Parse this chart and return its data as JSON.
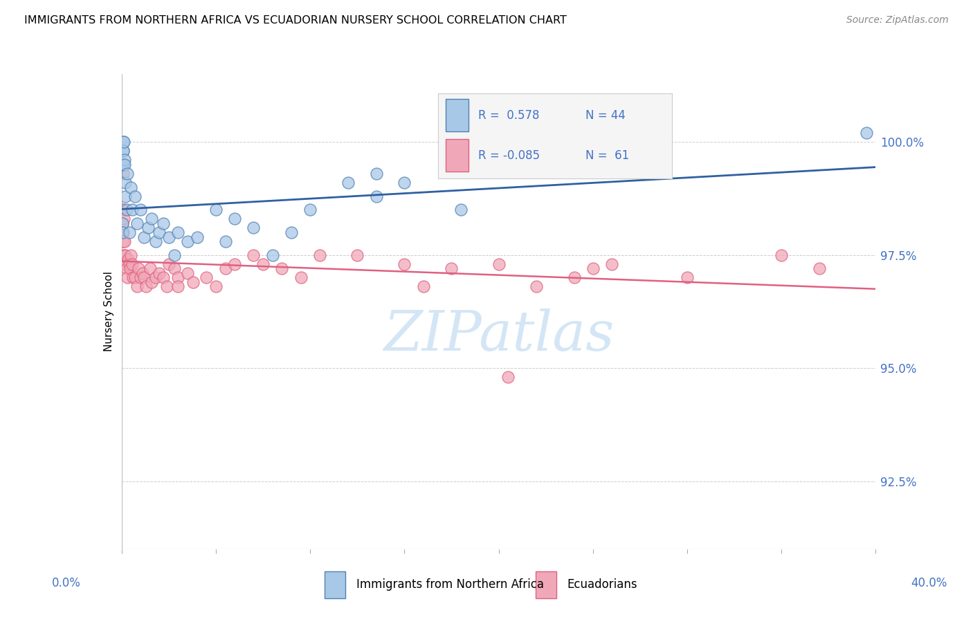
{
  "title": "IMMIGRANTS FROM NORTHERN AFRICA VS ECUADORIAN NURSERY SCHOOL CORRELATION CHART",
  "source": "Source: ZipAtlas.com",
  "ylabel": "Nursery School",
  "ytick_labels": [
    "92.5%",
    "95.0%",
    "97.5%",
    "100.0%"
  ],
  "ytick_values": [
    92.5,
    95.0,
    97.5,
    100.0
  ],
  "xlim": [
    0.0,
    40.0
  ],
  "ylim": [
    91.0,
    101.5
  ],
  "legend_r_blue": "0.578",
  "legend_n_blue": "44",
  "legend_r_pink": "-0.085",
  "legend_n_pink": "61",
  "blue_color": "#A8C8E8",
  "pink_color": "#F0A8B8",
  "blue_edge_color": "#5080B0",
  "pink_edge_color": "#E06080",
  "blue_line_color": "#3060A0",
  "pink_line_color": "#E06080",
  "watermark_color": "#D0E4F4",
  "blue_x": [
    0.05,
    0.05,
    0.08,
    0.08,
    0.1,
    0.1,
    0.12,
    0.15,
    0.15,
    0.18,
    0.2,
    0.25,
    0.3,
    0.4,
    0.5,
    0.55,
    0.7,
    0.8,
    1.0,
    1.2,
    1.4,
    1.6,
    1.8,
    2.0,
    2.2,
    2.5,
    2.8,
    3.0,
    3.5,
    4.0,
    5.0,
    5.5,
    6.0,
    7.0,
    8.0,
    9.0,
    10.0,
    12.0,
    13.5,
    13.5,
    15.0,
    18.0,
    25.0,
    39.5
  ],
  "blue_y": [
    98.2,
    98.0,
    100.0,
    99.8,
    99.8,
    99.5,
    100.0,
    99.6,
    99.5,
    99.1,
    98.8,
    98.5,
    99.3,
    98.0,
    99.0,
    98.5,
    98.8,
    98.2,
    98.5,
    97.9,
    98.1,
    98.3,
    97.8,
    98.0,
    98.2,
    97.9,
    97.5,
    98.0,
    97.8,
    97.9,
    98.5,
    97.8,
    98.3,
    98.1,
    97.5,
    98.0,
    98.5,
    99.1,
    98.8,
    99.3,
    99.1,
    98.5,
    99.5,
    100.2
  ],
  "pink_x": [
    0.05,
    0.05,
    0.08,
    0.08,
    0.1,
    0.1,
    0.1,
    0.12,
    0.15,
    0.15,
    0.18,
    0.2,
    0.25,
    0.3,
    0.35,
    0.4,
    0.45,
    0.5,
    0.55,
    0.6,
    0.7,
    0.8,
    0.9,
    1.0,
    1.1,
    1.2,
    1.3,
    1.5,
    1.6,
    1.8,
    2.0,
    2.2,
    2.4,
    2.5,
    2.8,
    3.0,
    3.0,
    3.5,
    3.8,
    4.5,
    5.0,
    5.5,
    6.0,
    7.0,
    7.5,
    8.5,
    9.5,
    10.5,
    12.5,
    15.0,
    16.0,
    17.5,
    20.0,
    22.0,
    24.0,
    25.0,
    26.0,
    30.0,
    35.0,
    37.0,
    20.5
  ],
  "pink_y": [
    98.5,
    98.2,
    98.0,
    97.8,
    99.3,
    98.5,
    97.5,
    98.3,
    97.8,
    97.5,
    97.5,
    97.3,
    97.2,
    97.0,
    97.4,
    97.3,
    97.2,
    97.5,
    97.3,
    97.0,
    97.0,
    96.8,
    97.2,
    97.0,
    97.1,
    97.0,
    96.8,
    97.2,
    96.9,
    97.0,
    97.1,
    97.0,
    96.8,
    97.3,
    97.2,
    97.0,
    96.8,
    97.1,
    96.9,
    97.0,
    96.8,
    97.2,
    97.3,
    97.5,
    97.3,
    97.2,
    97.0,
    97.5,
    97.5,
    97.3,
    96.8,
    97.2,
    97.3,
    96.8,
    97.0,
    97.2,
    97.3,
    97.0,
    97.5,
    97.2,
    94.8
  ]
}
